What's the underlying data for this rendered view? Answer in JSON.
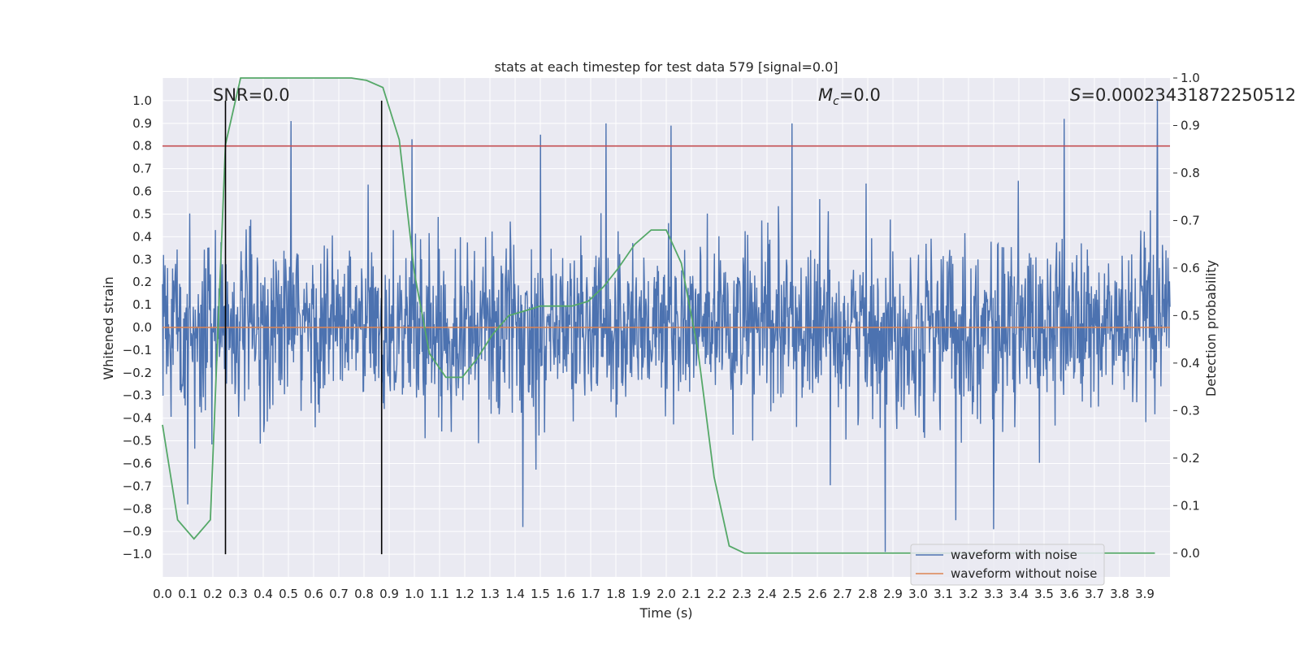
{
  "chart_data": {
    "type": "line",
    "title": "stats at each timestep for test data 579 [signal=0.0]",
    "xlabel": "Time (s)",
    "ylabel_left": "Whitened strain",
    "ylabel_right": "Detection probability",
    "xlim": [
      0.0,
      4.0
    ],
    "ylim_left": [
      -1.1,
      1.1
    ],
    "ylim_right": [
      -0.05,
      1.0
    ],
    "x_ticks": [
      "0.0",
      "0.1",
      "0.2",
      "0.3",
      "0.4",
      "0.5",
      "0.6",
      "0.7",
      "0.8",
      "0.9",
      "1.0",
      "1.1",
      "1.2",
      "1.3",
      "1.4",
      "1.5",
      "1.6",
      "1.7",
      "1.8",
      "1.9",
      "2.0",
      "2.1",
      "2.2",
      "2.3",
      "2.4",
      "2.5",
      "2.6",
      "2.7",
      "2.8",
      "2.9",
      "3.0",
      "3.1",
      "3.2",
      "3.3",
      "3.4",
      "3.5",
      "3.6",
      "3.7",
      "3.8",
      "3.9"
    ],
    "y_ticks_left": [
      "1.0",
      "0.9",
      "0.8",
      "0.7",
      "0.6",
      "0.5",
      "0.4",
      "0.3",
      "0.2",
      "0.1",
      "0.0",
      "−0.1",
      "−0.2",
      "−0.3",
      "−0.4",
      "−0.5",
      "−0.6",
      "−0.7",
      "−0.8",
      "−0.9",
      "−1.0"
    ],
    "y_ticks_right": [
      "1.0",
      "0.9",
      "0.8",
      "0.7",
      "0.6",
      "0.5",
      "0.4",
      "0.3",
      "0.2",
      "0.1",
      "0.0"
    ],
    "annotations": {
      "snr": "SNR=0.0",
      "mc_symbol": "M",
      "mc_sub": "c",
      "mc_value": "=0.0",
      "s_symbol": "S",
      "s_value": "=0.00023431872250512"
    },
    "threshold": 0.8,
    "vlines_x": [
      0.25,
      0.87
    ],
    "legend": [
      "waveform with noise",
      "waveform without noise"
    ],
    "legend_position": "lower-right",
    "colors": {
      "noise": "#4c72b0",
      "clean": "#dd8452",
      "prob": "#55a868",
      "threshold": "#c44e52",
      "vline": "#000000",
      "plot_bg": "#eaeaf2",
      "grid": "#ffffff"
    },
    "series": [
      {
        "name": "detection probability",
        "axis": "right",
        "x": [
          0.0,
          0.06,
          0.125,
          0.19,
          0.25,
          0.31,
          0.375,
          0.44,
          0.5,
          0.56,
          0.625,
          0.69,
          0.75,
          0.81,
          0.875,
          0.94,
          1.0,
          1.06,
          1.125,
          1.19,
          1.25,
          1.31,
          1.375,
          1.44,
          1.5,
          1.56,
          1.625,
          1.69,
          1.75,
          1.81,
          1.875,
          1.94,
          2.0,
          2.06,
          2.125,
          2.19,
          2.25,
          2.31,
          2.375,
          2.44,
          2.5,
          2.56,
          2.625,
          2.69,
          2.75,
          2.81,
          2.875,
          2.94,
          3.0,
          3.06,
          3.125,
          3.19,
          3.25,
          3.31,
          3.375,
          3.44,
          3.5,
          3.56,
          3.625,
          3.69,
          3.75,
          3.81,
          3.875,
          3.94
        ],
        "values": [
          0.27,
          0.07,
          0.03,
          0.07,
          0.86,
          1.0,
          1.0,
          1.0,
          1.0,
          1.0,
          1.0,
          1.0,
          1.0,
          0.995,
          0.98,
          0.87,
          0.59,
          0.42,
          0.37,
          0.37,
          0.41,
          0.46,
          0.5,
          0.51,
          0.52,
          0.52,
          0.52,
          0.53,
          0.56,
          0.6,
          0.65,
          0.68,
          0.68,
          0.61,
          0.43,
          0.16,
          0.015,
          0.0,
          0.0,
          0.0,
          0.0,
          0.0,
          0.0,
          0.0,
          0.0,
          0.0,
          0.0,
          0.0,
          0.0,
          0.0,
          0.0,
          0.0,
          0.0,
          0.0,
          0.0,
          0.0,
          0.0,
          0.0,
          0.0,
          0.0,
          0.0,
          0.0,
          0.0,
          0.0
        ]
      },
      {
        "name": "waveform without noise",
        "axis": "left",
        "x": [
          0.0,
          4.0
        ],
        "values": [
          0.0,
          0.0
        ]
      },
      {
        "name": "waveform with noise",
        "axis": "left",
        "description_range": [
          -1.0,
          1.0
        ],
        "peaks": [
          {
            "x": 0.51,
            "y": 0.91
          },
          {
            "x": 0.99,
            "y": 0.83
          },
          {
            "x": 1.5,
            "y": 0.85
          },
          {
            "x": 1.76,
            "y": 0.9
          },
          {
            "x": 2.02,
            "y": 0.89
          },
          {
            "x": 2.5,
            "y": 0.9
          },
          {
            "x": 3.58,
            "y": 0.92
          },
          {
            "x": 3.95,
            "y": 1.0
          },
          {
            "x": 2.87,
            "y": -0.99
          },
          {
            "x": 1.43,
            "y": -0.88
          },
          {
            "x": 3.3,
            "y": -0.89
          },
          {
            "x": 3.15,
            "y": -0.85
          },
          {
            "x": 0.1,
            "y": -0.78
          }
        ]
      }
    ]
  }
}
